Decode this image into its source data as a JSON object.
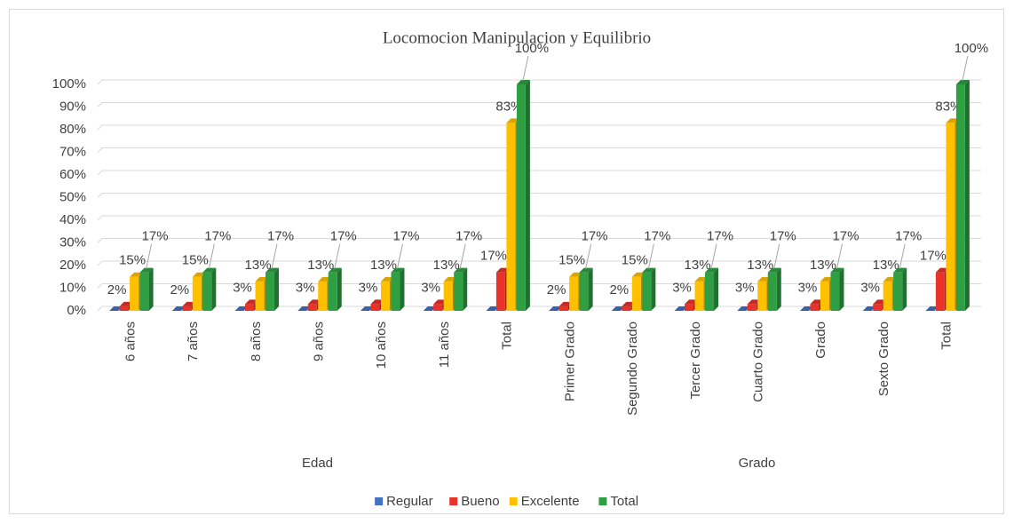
{
  "chart_data": {
    "type": "bar3d",
    "title": "Locomocion Manipulacion y Equilibrio",
    "categories": [
      "6 años",
      "7 años",
      "8 años",
      "9 años",
      "10 años",
      "11 años",
      "Total",
      "Primer Grado",
      "Segundo Grado",
      "Tercer Grado",
      "Cuarto Grado",
      "Grado",
      "Sexto Grado",
      "Total"
    ],
    "category_groups": [
      {
        "name": "Edad",
        "count": 7
      },
      {
        "name": "Grado",
        "count": 7
      }
    ],
    "series": [
      {
        "name": "Regular",
        "color": "#4472c4",
        "values": [
          0,
          0,
          0,
          0,
          0,
          0,
          0,
          0,
          0,
          0,
          0,
          0,
          0,
          0
        ]
      },
      {
        "name": "Bueno",
        "color": "#e8322a",
        "values": [
          2,
          2,
          3,
          3,
          3,
          3,
          17,
          2,
          2,
          3,
          3,
          3,
          3,
          17
        ],
        "value_labels": [
          "2%",
          "2%",
          "3%",
          "3%",
          "3%",
          "3%",
          "17%",
          "2%",
          "2%",
          "3%",
          "3%",
          "3%",
          "3%",
          "17%"
        ]
      },
      {
        "name": "Excelente",
        "color": "#ffc000",
        "values": [
          15,
          15,
          13,
          13,
          13,
          13,
          83,
          15,
          15,
          13,
          13,
          13,
          13,
          83
        ],
        "value_labels": [
          "15%",
          "15%",
          "13%",
          "13%",
          "13%",
          "13%",
          "83%",
          "15%",
          "15%",
          "13%",
          "13%",
          "13%",
          "13%",
          "83%"
        ]
      },
      {
        "name": "Total",
        "color": "#2ea043",
        "values": [
          17,
          17,
          17,
          17,
          17,
          17,
          100,
          17,
          17,
          17,
          17,
          17,
          17,
          100
        ],
        "value_labels": [
          "17%",
          "17%",
          "17%",
          "17%",
          "17%",
          "17%",
          "100%",
          "17%",
          "17%",
          "17%",
          "17%",
          "17%",
          "17%",
          "100%"
        ]
      }
    ],
    "ylim": [
      0,
      100
    ],
    "yticks": [
      {
        "value": 0,
        "label": "0%"
      },
      {
        "value": 10,
        "label": "10%"
      },
      {
        "value": 20,
        "label": "20%"
      },
      {
        "value": 30,
        "label": "30%"
      },
      {
        "value": 40,
        "label": "40%"
      },
      {
        "value": 50,
        "label": "50%"
      },
      {
        "value": 60,
        "label": "60%"
      },
      {
        "value": 70,
        "label": "70%"
      },
      {
        "value": 80,
        "label": "80%"
      },
      {
        "value": 90,
        "label": "90%"
      },
      {
        "value": 100,
        "label": "100%"
      }
    ],
    "grid": true,
    "legend": "bottom"
  }
}
